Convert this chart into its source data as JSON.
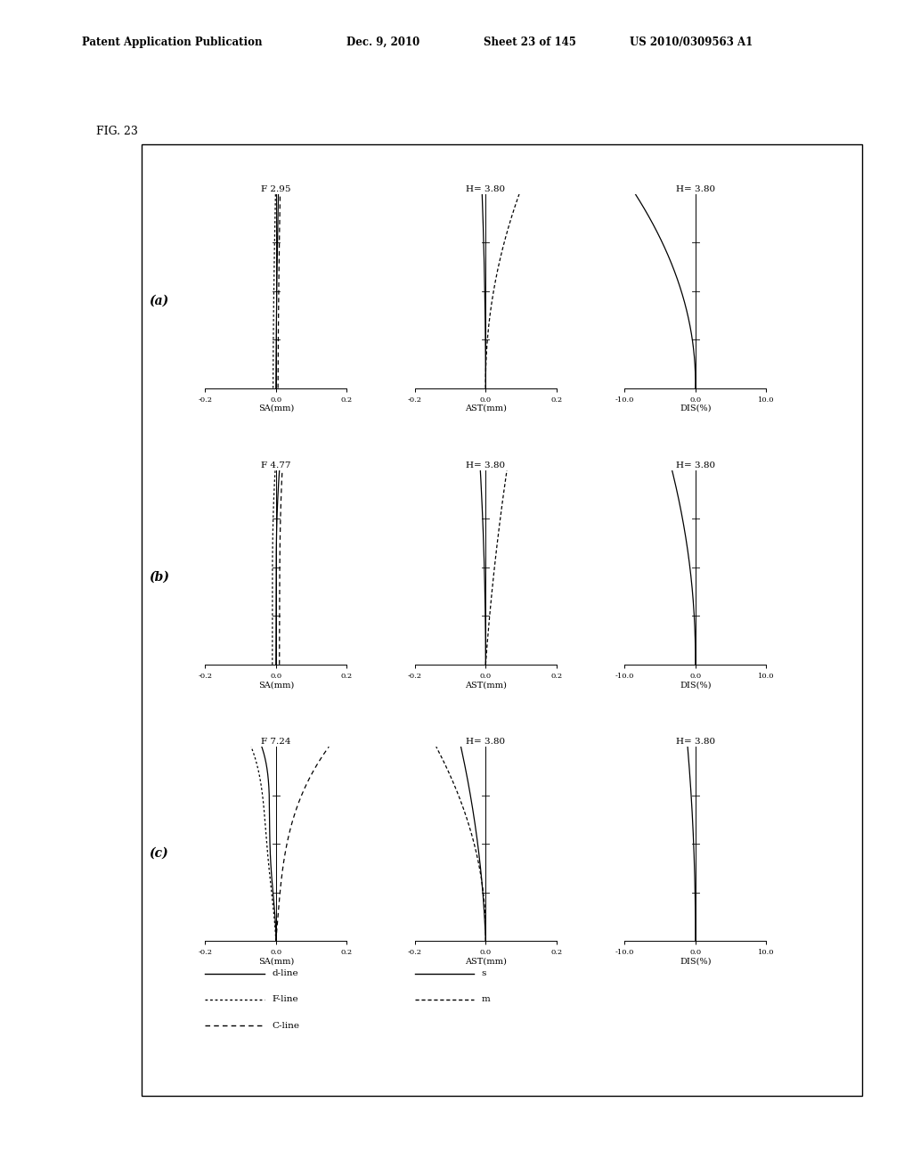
{
  "header_left": "Patent Application Publication",
  "header_date": "Dec. 9, 2010",
  "header_sheet": "Sheet 23 of 145",
  "header_patent": "US 2010/0309563 A1",
  "fig_label": "FIG. 23",
  "rows": [
    {
      "row_label": "(a)",
      "sa_title": "F 2.95",
      "ast_title": "H= 3.80",
      "dis_title": "H= 3.80"
    },
    {
      "row_label": "(b)",
      "sa_title": "F 4.77",
      "ast_title": "H= 3.80",
      "dis_title": "H= 3.80"
    },
    {
      "row_label": "(c)",
      "sa_title": "F 7.24",
      "ast_title": "H= 3.80",
      "dis_title": "H= 3.80"
    }
  ],
  "background_color": "#ffffff"
}
